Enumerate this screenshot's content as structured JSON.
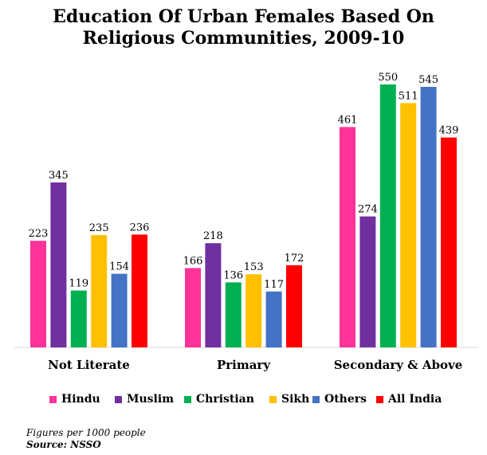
{
  "chart_data": {
    "type": "bar",
    "title_lines": [
      "Education Of Urban Females Based On",
      "Religious Communities, 2009-10"
    ],
    "categories": [
      "Not Literate",
      "Primary",
      "Secondary & Above"
    ],
    "series": [
      {
        "name": "Hindu",
        "color": "#FF3399",
        "values": [
          223,
          166,
          461
        ]
      },
      {
        "name": "Muslim",
        "color": "#7030A0",
        "values": [
          345,
          218,
          274
        ]
      },
      {
        "name": "Christian",
        "color": "#00B050",
        "values": [
          119,
          136,
          550
        ]
      },
      {
        "name": "Sikh",
        "color": "#FFC000",
        "values": [
          235,
          153,
          511
        ]
      },
      {
        "name": "Others",
        "color": "#4472C4",
        "values": [
          154,
          117,
          545
        ]
      },
      {
        "name": "All India",
        "color": "#FF0000",
        "values": [
          236,
          172,
          439
        ]
      }
    ],
    "ylim": [
      0,
      600
    ],
    "grid": false,
    "legend_position": "bottom"
  },
  "notes": {
    "figures": "Figures per 1000 people",
    "source": "Source: NSSO"
  }
}
